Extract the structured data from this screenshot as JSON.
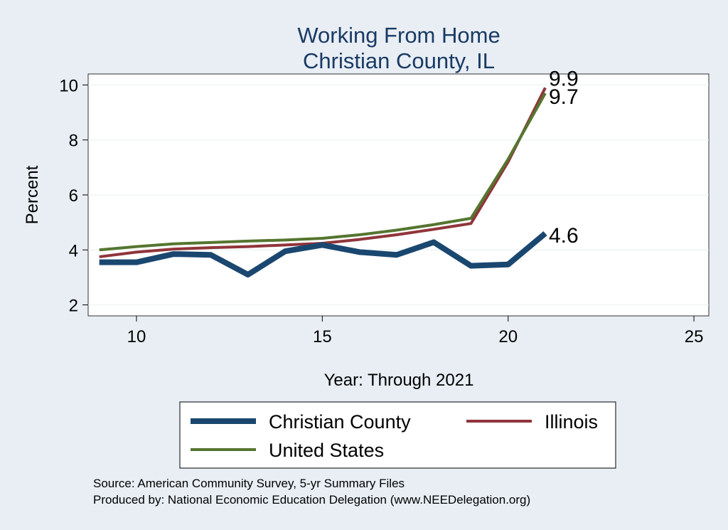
{
  "chart_data": {
    "type": "line",
    "title": [
      "Working From Home",
      "Christian County, IL"
    ],
    "xlabel": "Year: Through 2021",
    "ylabel": "Percent",
    "xlim": [
      8.7,
      25.4
    ],
    "ylim": [
      1.6,
      10.4
    ],
    "xticks": [
      10,
      15,
      20,
      25
    ],
    "yticks": [
      2,
      4,
      6,
      8,
      10
    ],
    "grid": "horizontal",
    "x": [
      9,
      10,
      11,
      12,
      13,
      14,
      15,
      16,
      17,
      18,
      19,
      20,
      21
    ],
    "series": [
      {
        "name": "Christian County",
        "color": "#1a476f",
        "values": [
          3.55,
          3.55,
          3.85,
          3.82,
          3.1,
          3.95,
          4.18,
          3.92,
          3.82,
          4.28,
          3.42,
          3.47,
          4.6
        ]
      },
      {
        "name": "Illinois",
        "color": "#90353b",
        "values": [
          3.75,
          3.92,
          4.03,
          4.08,
          4.12,
          4.18,
          4.24,
          4.38,
          4.55,
          4.75,
          4.96,
          7.2,
          9.9
        ]
      },
      {
        "name": "United States",
        "color": "#55752f",
        "values": [
          4.0,
          4.12,
          4.22,
          4.27,
          4.32,
          4.36,
          4.42,
          4.55,
          4.72,
          4.92,
          5.15,
          7.3,
          9.7
        ]
      }
    ],
    "end_labels": [
      {
        "series": "Illinois",
        "text": "9.9"
      },
      {
        "series": "United States",
        "text": "9.7"
      },
      {
        "series": "Christian County",
        "text": "4.6"
      }
    ],
    "legend": {
      "placement": "bottom",
      "order": [
        "Christian County",
        "Illinois",
        "United States"
      ]
    },
    "notes": [
      "Source: American Community Survey, 5-yr Summary Files",
      "Produced by: National Economic Education Delegation (www.NEEDelegation.org)"
    ]
  }
}
